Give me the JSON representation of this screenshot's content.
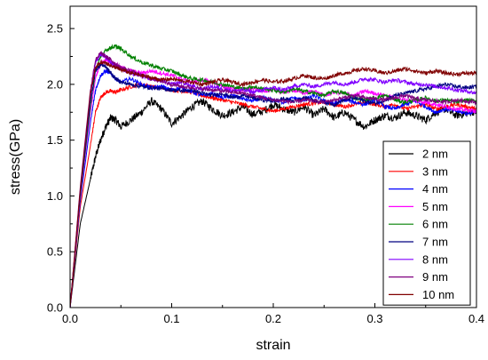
{
  "chart_data": {
    "type": "line",
    "xlabel": "strain",
    "ylabel": "stress(GPa)",
    "xlim": [
      0,
      0.4
    ],
    "ylim": [
      0,
      2.7
    ],
    "x_ticks": [
      0.0,
      0.1,
      0.2,
      0.3,
      0.4
    ],
    "x_tick_labels": [
      "0.0",
      "0.1",
      "0.2",
      "0.3",
      "0.4"
    ],
    "y_ticks": [
      0.0,
      0.5,
      1.0,
      1.5,
      2.0,
      2.5
    ],
    "y_tick_labels": [
      "0.0",
      "0.5",
      "1.0",
      "1.5",
      "2.0",
      "2.5"
    ],
    "grid": false,
    "legend_position": "lower-right",
    "x": [
      0.0,
      0.01,
      0.02,
      0.025,
      0.03,
      0.035,
      0.04,
      0.045,
      0.05,
      0.06,
      0.07,
      0.08,
      0.09,
      0.1,
      0.11,
      0.12,
      0.13,
      0.14,
      0.15,
      0.16,
      0.17,
      0.18,
      0.19,
      0.2,
      0.21,
      0.22,
      0.23,
      0.24,
      0.25,
      0.26,
      0.27,
      0.28,
      0.29,
      0.3,
      0.31,
      0.32,
      0.33,
      0.34,
      0.35,
      0.36,
      0.37,
      0.38,
      0.39,
      0.4
    ],
    "series": [
      {
        "name": "2 nm",
        "color": "#000000",
        "values": [
          0.0,
          0.75,
          1.15,
          1.35,
          1.5,
          1.62,
          1.7,
          1.68,
          1.62,
          1.68,
          1.75,
          1.85,
          1.78,
          1.65,
          1.72,
          1.8,
          1.85,
          1.78,
          1.72,
          1.75,
          1.8,
          1.73,
          1.76,
          1.82,
          1.78,
          1.75,
          1.8,
          1.72,
          1.78,
          1.7,
          1.75,
          1.68,
          1.62,
          1.68,
          1.72,
          1.7,
          1.75,
          1.72,
          1.68,
          1.75,
          1.78,
          1.72,
          1.74,
          1.76
        ]
      },
      {
        "name": "3 nm",
        "color": "#ff0000",
        "values": [
          0.0,
          0.9,
          1.45,
          1.75,
          1.88,
          1.93,
          1.94,
          1.93,
          1.95,
          1.98,
          2.0,
          1.98,
          1.97,
          1.95,
          1.94,
          1.93,
          1.9,
          1.88,
          1.86,
          1.84,
          1.82,
          1.8,
          1.78,
          1.76,
          1.78,
          1.8,
          1.82,
          1.83,
          1.84,
          1.82,
          1.8,
          1.82,
          1.84,
          1.82,
          1.8,
          1.82,
          1.78,
          1.8,
          1.82,
          1.78,
          1.8,
          1.82,
          1.8,
          1.78
        ]
      },
      {
        "name": "4 nm",
        "color": "#0000ff",
        "values": [
          0.0,
          0.95,
          1.65,
          1.95,
          2.08,
          2.12,
          2.1,
          2.05,
          2.02,
          2.05,
          2.0,
          1.97,
          1.98,
          1.95,
          1.97,
          1.93,
          1.9,
          1.92,
          1.88,
          1.9,
          1.87,
          1.85,
          1.88,
          1.86,
          1.84,
          1.88,
          1.86,
          1.9,
          1.85,
          1.83,
          1.86,
          1.84,
          1.82,
          1.86,
          1.8,
          1.78,
          1.82,
          1.85,
          1.8,
          1.75,
          1.78,
          1.76,
          1.74,
          1.76
        ]
      },
      {
        "name": "5 nm",
        "color": "#ff00ff",
        "values": [
          0.0,
          0.98,
          1.75,
          2.05,
          2.18,
          2.22,
          2.2,
          2.18,
          2.15,
          2.12,
          2.1,
          2.12,
          2.1,
          2.08,
          2.05,
          2.02,
          2.04,
          2.02,
          1.98,
          1.96,
          1.95,
          1.96,
          1.94,
          1.95,
          1.93,
          1.95,
          1.92,
          1.94,
          1.9,
          1.93,
          1.92,
          1.9,
          1.94,
          1.92,
          1.9,
          1.88,
          1.86,
          1.85,
          1.84,
          1.82,
          1.8,
          1.78,
          1.77,
          1.76
        ]
      },
      {
        "name": "6 nm",
        "color": "#008000",
        "values": [
          0.0,
          1.0,
          1.8,
          2.12,
          2.25,
          2.3,
          2.33,
          2.34,
          2.32,
          2.25,
          2.2,
          2.17,
          2.14,
          2.12,
          2.08,
          2.05,
          2.04,
          2.02,
          2.0,
          1.98,
          1.96,
          1.98,
          1.96,
          1.95,
          1.93,
          1.96,
          1.94,
          1.92,
          1.9,
          1.94,
          1.92,
          1.88,
          1.86,
          1.88,
          1.9,
          1.86,
          1.84,
          1.86,
          1.88,
          1.85,
          1.86,
          1.84,
          1.86,
          1.85
        ]
      },
      {
        "name": "7 nm",
        "color": "#000080",
        "values": [
          0.0,
          1.02,
          1.85,
          2.12,
          2.18,
          2.16,
          2.1,
          2.05,
          2.02,
          2.0,
          1.98,
          1.97,
          1.96,
          1.95,
          1.94,
          1.95,
          1.92,
          1.9,
          1.92,
          1.88,
          1.9,
          1.88,
          1.86,
          1.85,
          1.87,
          1.85,
          1.88,
          1.86,
          1.84,
          1.82,
          1.86,
          1.88,
          1.85,
          1.83,
          1.86,
          1.9,
          1.92,
          1.94,
          1.96,
          1.98,
          2.0,
          1.98,
          1.97,
          1.98
        ]
      },
      {
        "name": "8 nm",
        "color": "#8000ff",
        "values": [
          0.0,
          1.05,
          1.9,
          2.2,
          2.27,
          2.25,
          2.2,
          2.16,
          2.14,
          2.1,
          2.08,
          2.05,
          2.03,
          2.0,
          2.02,
          1.98,
          1.96,
          1.98,
          1.96,
          1.94,
          1.95,
          1.93,
          1.95,
          1.97,
          1.95,
          1.98,
          2.0,
          1.98,
          2.0,
          2.02,
          2.0,
          2.02,
          2.05,
          2.04,
          2.02,
          2.04,
          2.02,
          2.0,
          2.0,
          1.98,
          1.97,
          1.95,
          1.94,
          1.92
        ]
      },
      {
        "name": "9 nm",
        "color": "#800080",
        "values": [
          0.0,
          1.08,
          1.95,
          2.22,
          2.28,
          2.25,
          2.22,
          2.18,
          2.15,
          2.12,
          2.08,
          2.05,
          2.03,
          2.0,
          1.98,
          1.97,
          1.96,
          1.95,
          1.94,
          1.93,
          1.92,
          1.9,
          1.88,
          1.86,
          1.85,
          1.84,
          1.86,
          1.85,
          1.84,
          1.86,
          1.88,
          1.9,
          1.88,
          1.87,
          1.86,
          1.88,
          1.9,
          1.87,
          1.86,
          1.85,
          1.84,
          1.86,
          1.85,
          1.84
        ]
      },
      {
        "name": "10 nm",
        "color": "#800000",
        "values": [
          0.0,
          1.05,
          1.92,
          2.15,
          2.2,
          2.19,
          2.17,
          2.15,
          2.13,
          2.1,
          2.08,
          2.06,
          2.04,
          2.05,
          2.03,
          2.02,
          2.0,
          2.02,
          2.04,
          2.02,
          2.0,
          2.02,
          2.04,
          2.02,
          2.03,
          2.05,
          2.08,
          2.06,
          2.05,
          2.08,
          2.1,
          2.12,
          2.14,
          2.12,
          2.1,
          2.12,
          2.14,
          2.12,
          2.1,
          2.12,
          2.1,
          2.09,
          2.1,
          2.1
        ]
      }
    ]
  }
}
